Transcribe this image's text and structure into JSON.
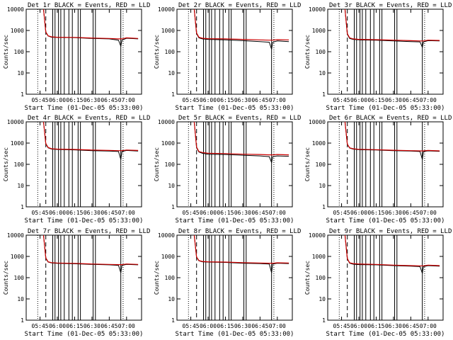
{
  "colors": {
    "background": "#ffffff",
    "axis": "#000000",
    "events": "#000000",
    "lld": "#cc0000"
  },
  "chart_data": [
    {
      "type": "line",
      "title": "Det 1r BLACK = Events, RED = LLD",
      "xlabel": "Start Time (01-Dec-05 05:33:00)",
      "ylabel": "Counts/sec",
      "xlim": [
        "05:33",
        "07:13"
      ],
      "ylim": [
        1,
        10000
      ],
      "yscale": "log",
      "x_ticks": [
        "05:45",
        "06:00",
        "06:15",
        "06:30",
        "06:45",
        "07:00"
      ],
      "y_ticks": [
        "1",
        "10",
        "100",
        "1000",
        "10000"
      ],
      "series": [
        {
          "name": "Events",
          "x": [
            "05:48",
            "05:50",
            "05:52",
            "05:55",
            "06:00",
            "06:15",
            "06:30",
            "06:45",
            "06:53",
            "06:55",
            "06:56",
            "07:00",
            "07:10"
          ],
          "y": [
            10000,
            800,
            550,
            480,
            470,
            460,
            420,
            400,
            350,
            180,
            350,
            430,
            400
          ]
        },
        {
          "name": "LLD",
          "x": [
            "05:48",
            "05:50",
            "05:52",
            "05:55",
            "06:00",
            "06:15",
            "06:30",
            "06:45",
            "06:53",
            "06:55",
            "06:56",
            "07:00",
            "07:10"
          ],
          "y": [
            10000,
            850,
            560,
            500,
            480,
            470,
            440,
            420,
            400,
            400,
            400,
            450,
            420
          ]
        }
      ]
    },
    {
      "type": "line",
      "title": "Det 2r BLACK = Events, RED = LLD",
      "xlabel": "Start Time (01-Dec-05 05:33:00)",
      "ylabel": "Counts/sec",
      "xlim": [
        "05:33",
        "07:13"
      ],
      "ylim": [
        1,
        10000
      ],
      "yscale": "log",
      "x_ticks": [
        "05:45",
        "06:00",
        "06:15",
        "06:30",
        "06:45",
        "07:00"
      ],
      "y_ticks": [
        "1",
        "10",
        "100",
        "1000",
        "10000"
      ],
      "series": [
        {
          "name": "Events",
          "x": [
            "05:48",
            "05:50",
            "05:52",
            "05:55",
            "06:00",
            "06:15",
            "06:30",
            "06:45",
            "06:53",
            "06:55",
            "06:56",
            "07:00",
            "07:10"
          ],
          "y": [
            10000,
            700,
            450,
            400,
            380,
            360,
            330,
            300,
            280,
            130,
            280,
            320,
            300
          ]
        },
        {
          "name": "LLD",
          "x": [
            "05:48",
            "05:50",
            "05:52",
            "05:55",
            "06:00",
            "06:15",
            "06:30",
            "06:45",
            "06:53",
            "06:55",
            "06:56",
            "07:00",
            "07:10"
          ],
          "y": [
            10000,
            760,
            480,
            430,
            410,
            400,
            380,
            360,
            350,
            350,
            350,
            370,
            360
          ]
        }
      ]
    },
    {
      "type": "line",
      "title": "Det 3r BLACK = Events, RED = LLD",
      "xlabel": "Start Time (01-Dec-05 05:33:00)",
      "ylabel": "Counts/sec",
      "xlim": [
        "05:33",
        "07:13"
      ],
      "ylim": [
        1,
        10000
      ],
      "yscale": "log",
      "x_ticks": [
        "05:45",
        "06:00",
        "06:15",
        "06:30",
        "06:45",
        "07:00"
      ],
      "y_ticks": [
        "1",
        "10",
        "100",
        "1000",
        "10000"
      ],
      "series": [
        {
          "name": "Events",
          "x": [
            "05:48",
            "05:50",
            "05:52",
            "05:55",
            "06:00",
            "06:15",
            "06:30",
            "06:45",
            "06:53",
            "06:55",
            "06:56",
            "07:00",
            "07:10"
          ],
          "y": [
            10000,
            650,
            420,
            380,
            360,
            350,
            320,
            300,
            290,
            160,
            290,
            330,
            320
          ]
        },
        {
          "name": "LLD",
          "x": [
            "05:48",
            "05:50",
            "05:52",
            "05:55",
            "06:00",
            "06:15",
            "06:30",
            "06:45",
            "06:53",
            "06:55",
            "06:56",
            "07:00",
            "07:10"
          ],
          "y": [
            10000,
            700,
            450,
            400,
            380,
            370,
            350,
            330,
            320,
            320,
            320,
            350,
            340
          ]
        }
      ]
    },
    {
      "type": "line",
      "title": "Det 4r BLACK = Events, RED = LLD",
      "xlabel": "Start Time (01-Dec-05 05:33:00)",
      "ylabel": "Counts/sec",
      "xlim": [
        "05:33",
        "07:13"
      ],
      "ylim": [
        1,
        10000
      ],
      "yscale": "log",
      "x_ticks": [
        "05:45",
        "06:00",
        "06:15",
        "06:30",
        "06:45",
        "07:00"
      ],
      "y_ticks": [
        "1",
        "10",
        "100",
        "1000",
        "10000"
      ],
      "series": [
        {
          "name": "Events",
          "x": [
            "05:48",
            "05:50",
            "05:52",
            "05:55",
            "06:00",
            "06:15",
            "06:30",
            "06:45",
            "06:53",
            "06:55",
            "06:56",
            "07:00",
            "07:10"
          ],
          "y": [
            10000,
            900,
            600,
            520,
            500,
            480,
            440,
            420,
            400,
            170,
            400,
            450,
            420
          ]
        },
        {
          "name": "LLD",
          "x": [
            "05:48",
            "05:50",
            "05:52",
            "05:55",
            "06:00",
            "06:15",
            "06:30",
            "06:45",
            "06:53",
            "06:55",
            "06:56",
            "07:00",
            "07:10"
          ],
          "y": [
            10000,
            950,
            620,
            540,
            520,
            500,
            470,
            450,
            440,
            440,
            440,
            470,
            450
          ]
        }
      ]
    },
    {
      "type": "line",
      "title": "Det 5r BLACK = Events, RED = LLD",
      "xlabel": "Start Time (01-Dec-05 05:33:00)",
      "ylabel": "Counts/sec",
      "xlim": [
        "05:33",
        "07:13"
      ],
      "ylim": [
        1,
        10000
      ],
      "yscale": "log",
      "x_ticks": [
        "05:45",
        "06:00",
        "06:15",
        "06:30",
        "06:45",
        "07:00"
      ],
      "y_ticks": [
        "1",
        "10",
        "100",
        "1000",
        "10000"
      ],
      "series": [
        {
          "name": "Events",
          "x": [
            "05:48",
            "05:50",
            "05:52",
            "05:55",
            "06:00",
            "06:15",
            "06:30",
            "06:45",
            "06:53",
            "06:55",
            "06:56",
            "07:00",
            "07:10"
          ],
          "y": [
            10000,
            600,
            380,
            330,
            300,
            290,
            270,
            250,
            230,
            120,
            230,
            250,
            240
          ]
        },
        {
          "name": "LLD",
          "x": [
            "05:48",
            "05:50",
            "05:52",
            "05:55",
            "06:00",
            "06:15",
            "06:30",
            "06:45",
            "06:53",
            "06:55",
            "06:56",
            "07:00",
            "07:10"
          ],
          "y": [
            10000,
            650,
            400,
            360,
            330,
            320,
            300,
            290,
            280,
            280,
            280,
            290,
            280
          ]
        }
      ]
    },
    {
      "type": "line",
      "title": "Det 6r BLACK = Events, RED = LLD",
      "xlabel": "Start Time (01-Dec-05 05:33:00)",
      "ylabel": "Counts/sec",
      "xlim": [
        "05:33",
        "07:13"
      ],
      "ylim": [
        1,
        10000
      ],
      "yscale": "log",
      "x_ticks": [
        "05:45",
        "06:00",
        "06:15",
        "06:30",
        "06:45",
        "07:00"
      ],
      "y_ticks": [
        "1",
        "10",
        "100",
        "1000",
        "10000"
      ],
      "series": [
        {
          "name": "Events",
          "x": [
            "05:48",
            "05:50",
            "05:52",
            "05:55",
            "06:00",
            "06:15",
            "06:30",
            "06:45",
            "06:53",
            "06:55",
            "06:56",
            "07:00",
            "07:10"
          ],
          "y": [
            10000,
            850,
            580,
            520,
            490,
            470,
            440,
            420,
            400,
            170,
            400,
            430,
            410
          ]
        },
        {
          "name": "LLD",
          "x": [
            "05:48",
            "05:50",
            "05:52",
            "05:55",
            "06:00",
            "06:15",
            "06:30",
            "06:45",
            "06:53",
            "06:55",
            "06:56",
            "07:00",
            "07:10"
          ],
          "y": [
            10000,
            900,
            600,
            540,
            510,
            490,
            460,
            440,
            430,
            430,
            430,
            450,
            430
          ]
        }
      ]
    },
    {
      "type": "line",
      "title": "Det 7r BLACK = Events, RED = LLD",
      "xlabel": "Start Time (01-Dec-05 05:33:00)",
      "ylabel": "Counts/sec",
      "xlim": [
        "05:33",
        "07:13"
      ],
      "ylim": [
        1,
        10000
      ],
      "yscale": "log",
      "x_ticks": [
        "05:45",
        "06:00",
        "06:15",
        "06:30",
        "06:45",
        "07:00"
      ],
      "y_ticks": [
        "1",
        "10",
        "100",
        "1000",
        "10000"
      ],
      "series": [
        {
          "name": "Events",
          "x": [
            "05:48",
            "05:50",
            "05:52",
            "05:55",
            "06:00",
            "06:15",
            "06:30",
            "06:45",
            "06:53",
            "06:55",
            "06:56",
            "07:00",
            "07:10"
          ],
          "y": [
            10000,
            800,
            540,
            490,
            470,
            450,
            420,
            400,
            380,
            170,
            380,
            420,
            400
          ]
        },
        {
          "name": "LLD",
          "x": [
            "05:48",
            "05:50",
            "05:52",
            "05:55",
            "06:00",
            "06:15",
            "06:30",
            "06:45",
            "06:53",
            "06:55",
            "06:56",
            "07:00",
            "07:10"
          ],
          "y": [
            10000,
            850,
            560,
            510,
            490,
            470,
            440,
            420,
            410,
            410,
            410,
            440,
            420
          ]
        }
      ]
    },
    {
      "type": "line",
      "title": "Det 8r BLACK = Events, RED = LLD",
      "xlabel": "Start Time (01-Dec-05 05:33:00)",
      "ylabel": "Counts/sec",
      "xlim": [
        "05:33",
        "07:13"
      ],
      "ylim": [
        1,
        10000
      ],
      "yscale": "log",
      "x_ticks": [
        "05:45",
        "06:00",
        "06:15",
        "06:30",
        "06:45",
        "07:00"
      ],
      "y_ticks": [
        "1",
        "10",
        "100",
        "1000",
        "10000"
      ],
      "series": [
        {
          "name": "Events",
          "x": [
            "05:48",
            "05:50",
            "05:52",
            "05:55",
            "06:00",
            "06:15",
            "06:30",
            "06:45",
            "06:53",
            "06:55",
            "06:56",
            "07:00",
            "07:10"
          ],
          "y": [
            10000,
            900,
            620,
            560,
            540,
            520,
            480,
            460,
            440,
            170,
            440,
            480,
            460
          ]
        },
        {
          "name": "LLD",
          "x": [
            "05:48",
            "05:50",
            "05:52",
            "05:55",
            "06:00",
            "06:15",
            "06:30",
            "06:45",
            "06:53",
            "06:55",
            "06:56",
            "07:00",
            "07:10"
          ],
          "y": [
            10000,
            950,
            640,
            580,
            560,
            540,
            510,
            490,
            480,
            480,
            480,
            500,
            490
          ]
        }
      ]
    },
    {
      "type": "line",
      "title": "Det 9r BLACK = Events, RED = LLD",
      "xlabel": "Start Time (01-Dec-05 05:33:00)",
      "ylabel": "Counts/sec",
      "xlim": [
        "05:33",
        "07:13"
      ],
      "ylim": [
        1,
        10000
      ],
      "yscale": "log",
      "x_ticks": [
        "05:45",
        "06:00",
        "06:15",
        "06:30",
        "06:45",
        "07:00"
      ],
      "y_ticks": [
        "1",
        "10",
        "100",
        "1000",
        "10000"
      ],
      "series": [
        {
          "name": "Events",
          "x": [
            "05:48",
            "05:50",
            "05:52",
            "05:55",
            "06:00",
            "06:15",
            "06:30",
            "06:45",
            "06:53",
            "06:55",
            "06:56",
            "07:00",
            "07:10"
          ],
          "y": [
            10000,
            750,
            480,
            430,
            410,
            400,
            370,
            350,
            330,
            160,
            330,
            370,
            350
          ]
        },
        {
          "name": "LLD",
          "x": [
            "05:48",
            "05:50",
            "05:52",
            "05:55",
            "06:00",
            "06:15",
            "06:30",
            "06:45",
            "06:53",
            "06:55",
            "06:56",
            "07:00",
            "07:10"
          ],
          "y": [
            10000,
            800,
            500,
            460,
            440,
            420,
            390,
            370,
            360,
            360,
            360,
            390,
            370
          ]
        }
      ]
    }
  ]
}
